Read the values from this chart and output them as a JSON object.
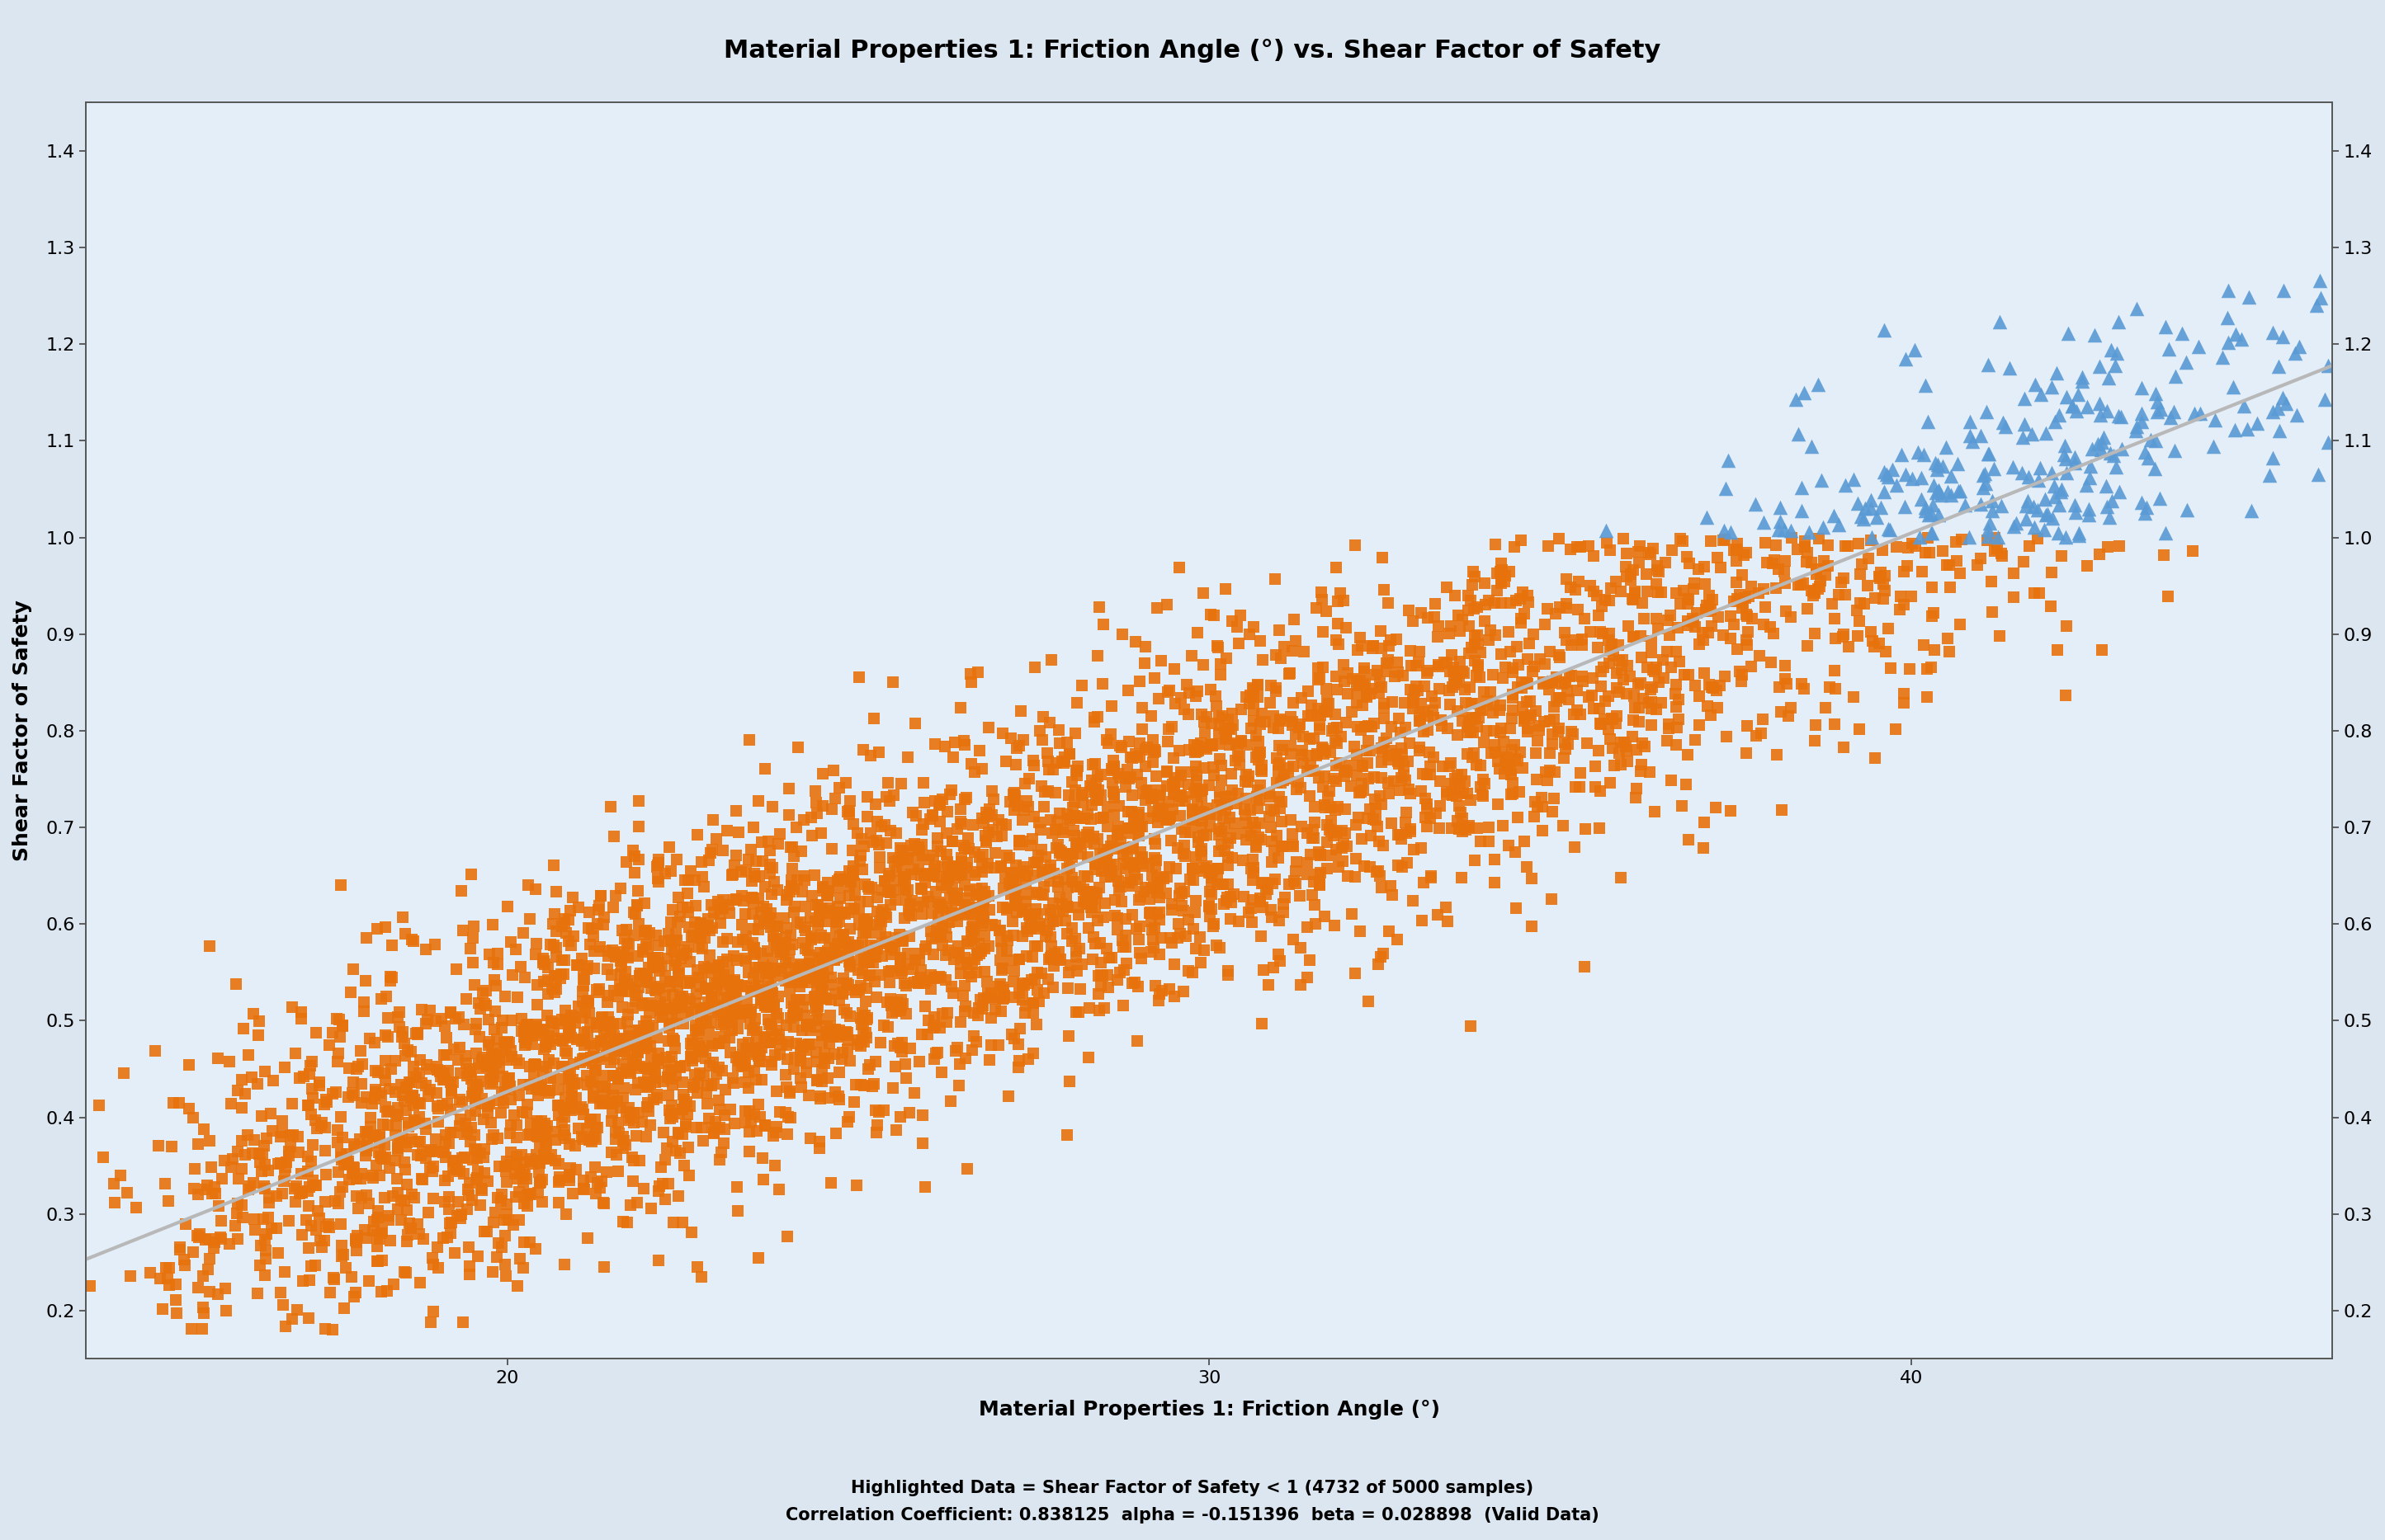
{
  "title": "Material Properties 1: Friction Angle (°) vs. Shear Factor of Safety",
  "xlabel": "Material Properties 1: Friction Angle (°)",
  "ylabel": "Shear Factor of Safety",
  "annotation_line1": "Highlighted Data = Shear Factor of Safety < 1 (4732 of 5000 samples)",
  "annotation_line2": "Correlation Coefficient: 0.838125  alpha = -0.151396  beta = 0.028898  (Valid Data)",
  "n_samples": 5000,
  "n_orange": 4732,
  "n_blue": 268,
  "alpha": -0.151396,
  "beta": 0.028898,
  "x_min": 14.0,
  "x_max": 46.0,
  "y_min": 0.15,
  "y_max": 1.45,
  "x_tick_values": [
    20,
    30,
    40
  ],
  "y_tick_values": [
    0.2,
    0.3,
    0.4,
    0.5,
    0.6,
    0.7,
    0.8,
    0.9,
    1.0,
    1.1,
    1.2,
    1.3,
    1.4
  ],
  "orange_color": "#E8720C",
  "blue_color": "#5B9BD5",
  "regression_color": "#B8B8B8",
  "background_color": "#DCE6F1",
  "plot_bg_color": "#E4EEF8",
  "title_fontsize": 22,
  "label_fontsize": 18,
  "tick_fontsize": 16,
  "annotation_fontsize": 15,
  "regression_linewidth": 3.0,
  "seed": 42
}
